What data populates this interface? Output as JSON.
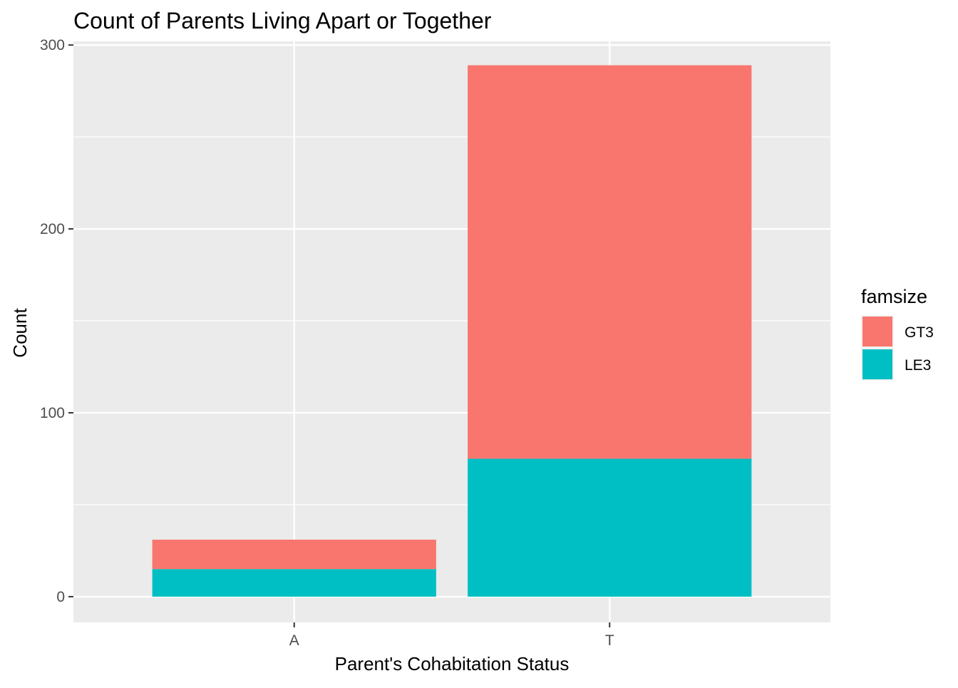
{
  "chart_data": {
    "type": "bar",
    "stacked": true,
    "title": "Count of Parents Living Apart or Together",
    "xlabel": "Parent's Cohabitation Status",
    "ylabel": "Count",
    "categories": [
      "A",
      "T"
    ],
    "series": [
      {
        "name": "GT3",
        "values": [
          16,
          214
        ],
        "color": "#F8766D"
      },
      {
        "name": "LE3",
        "values": [
          15,
          75
        ],
        "color": "#00BFC4"
      }
    ],
    "ylim": [
      -14,
      302
    ],
    "yticks": [
      0,
      100,
      200,
      300
    ],
    "grid": true,
    "legend": {
      "title": "famsize",
      "position": "right"
    }
  },
  "colors": {
    "panel_background": "#EBEBEB",
    "grid_major": "#FFFFFF",
    "tick_text": "#4D4D4D"
  }
}
